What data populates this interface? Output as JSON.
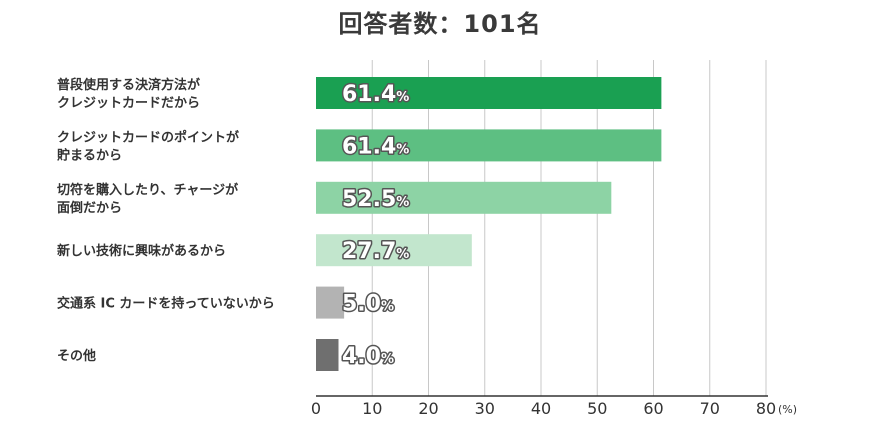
{
  "title": "回答者数：101名",
  "chart_data": {
    "type": "bar",
    "orientation": "horizontal",
    "title": "回答者数：101名",
    "categories": [
      [
        "普段使用する決済方法が",
        "クレジットカードだから"
      ],
      [
        "クレジットカードのポイントが",
        "貯まるから"
      ],
      [
        "切符を購入したり、チャージが",
        "面倒だから"
      ],
      [
        "新しい技術に興味があるから"
      ],
      [
        "交通系 IC カードを持っていないから"
      ],
      [
        "その他"
      ]
    ],
    "values": [
      61.4,
      61.4,
      52.5,
      27.7,
      5.0,
      4.0
    ],
    "value_labels": [
      "61.4",
      "61.4",
      "52.5",
      "27.7",
      "5.0",
      "4.0"
    ],
    "value_suffix": "%",
    "bar_colors": [
      "#1aa052",
      "#5dbf82",
      "#8dd3a5",
      "#c2e6cd",
      "#b3b3b3",
      "#6f6f6f"
    ],
    "xlim": [
      0,
      80
    ],
    "xticks": [
      0,
      10,
      20,
      30,
      40,
      50,
      60,
      70,
      80
    ],
    "x_unit": "(%)",
    "grid": true
  }
}
